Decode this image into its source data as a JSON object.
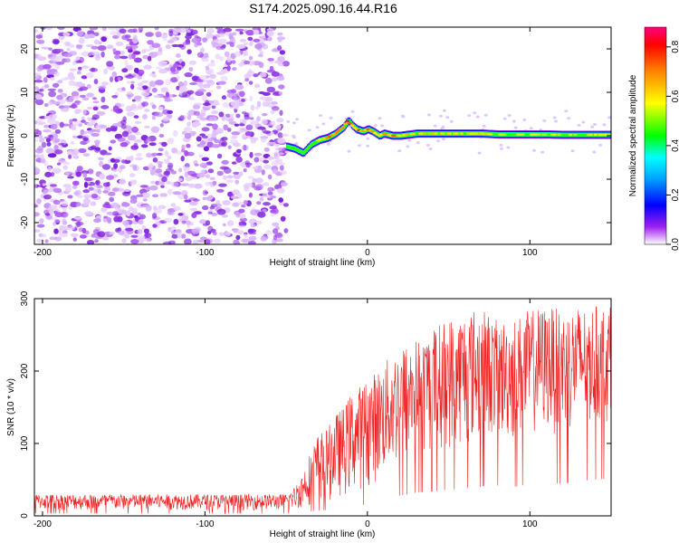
{
  "title": "S174.2025.090.16.44.R16",
  "chart_data": [
    {
      "type": "heatmap",
      "xlabel": "Height of straight line (km)",
      "ylabel": "Frequency (Hz)",
      "xlim": [
        -205,
        150
      ],
      "ylim": [
        -25,
        25
      ],
      "xticks": [
        -200,
        -100,
        0,
        100
      ],
      "xtick_labels": [
        "-200",
        "-100",
        "0",
        "100"
      ],
      "yticks": [
        -20,
        -10,
        0,
        10,
        20
      ],
      "ytick_labels": [
        "-20",
        "-10",
        "0",
        "10",
        "20"
      ],
      "colorbar": {
        "label": "Normalized spectral amplitude",
        "range": [
          0.0,
          0.88
        ],
        "ticks": [
          0.0,
          0.2,
          0.4,
          0.6,
          0.8
        ],
        "tick_labels": [
          "0.0",
          "0.2",
          "0.4",
          "0.6",
          "0.8"
        ],
        "colors": [
          "#ffffff",
          "#a020f0",
          "#0000ff",
          "#00ffff",
          "#00ff00",
          "#ffff00",
          "#ff8000",
          "#ff0000",
          "#ff0080"
        ]
      },
      "noise_region_x": [
        -205,
        -50
      ],
      "ridge": {
        "x": [
          -50,
          -45,
          -40,
          -35,
          -30,
          -25,
          -20,
          -15,
          -12,
          -10,
          -7,
          -3,
          0,
          3,
          7,
          10,
          15,
          20,
          30,
          40,
          50,
          60,
          70,
          80,
          90,
          100,
          110,
          120,
          130,
          140,
          150
        ],
        "y": [
          -2.5,
          -3,
          -4,
          -2,
          -1,
          -0.5,
          0.5,
          2,
          3.5,
          2.5,
          1.5,
          1,
          1.5,
          1,
          0,
          0.5,
          0,
          0,
          0.5,
          0.5,
          0.5,
          0.5,
          0.5,
          0.3,
          0.3,
          0.3,
          0.3,
          0.2,
          0.2,
          0.2,
          0.2
        ],
        "amp": [
          0.4,
          0.45,
          0.5,
          0.55,
          0.7,
          0.75,
          0.8,
          0.82,
          0.85,
          0.82,
          0.8,
          0.82,
          0.85,
          0.8,
          0.75,
          0.7,
          0.8,
          0.7,
          0.62,
          0.7,
          0.65,
          0.62,
          0.7,
          0.62,
          0.6,
          0.62,
          0.65,
          0.62,
          0.6,
          0.65,
          0.6
        ]
      }
    },
    {
      "type": "line",
      "xlabel": "Height of straight line (km)",
      "ylabel": "SNR (10 * v/v)",
      "xlim": [
        -205,
        150
      ],
      "ylim": [
        0,
        300
      ],
      "xticks": [
        -200,
        -100,
        0,
        100
      ],
      "xtick_labels": [
        "-200",
        "-100",
        "0",
        "100"
      ],
      "yticks": [
        0,
        100,
        200,
        300
      ],
      "ytick_labels": [
        "0",
        "100",
        "200",
        "300"
      ],
      "color": "#ee2222",
      "envelope": {
        "x": [
          -205,
          -50,
          -45,
          -40,
          -35,
          -30,
          -25,
          -20,
          -15,
          -10,
          -5,
          0,
          5,
          10,
          15,
          20,
          30,
          40,
          50,
          60,
          70,
          75,
          80,
          90,
          100,
          110,
          120,
          130,
          140,
          150
        ],
        "low": [
          8,
          8,
          8,
          10,
          15,
          18,
          20,
          25,
          25,
          30,
          35,
          40,
          45,
          55,
          60,
          70,
          80,
          85,
          90,
          95,
          100,
          110,
          105,
          100,
          110,
          115,
          110,
          120,
          125,
          130
        ],
        "high": [
          30,
          30,
          40,
          60,
          90,
          115,
          120,
          140,
          150,
          170,
          180,
          190,
          200,
          210,
          225,
          235,
          245,
          260,
          275,
          285,
          290,
          280,
          270,
          275,
          285,
          290,
          285,
          290,
          290,
          290
        ]
      }
    }
  ]
}
